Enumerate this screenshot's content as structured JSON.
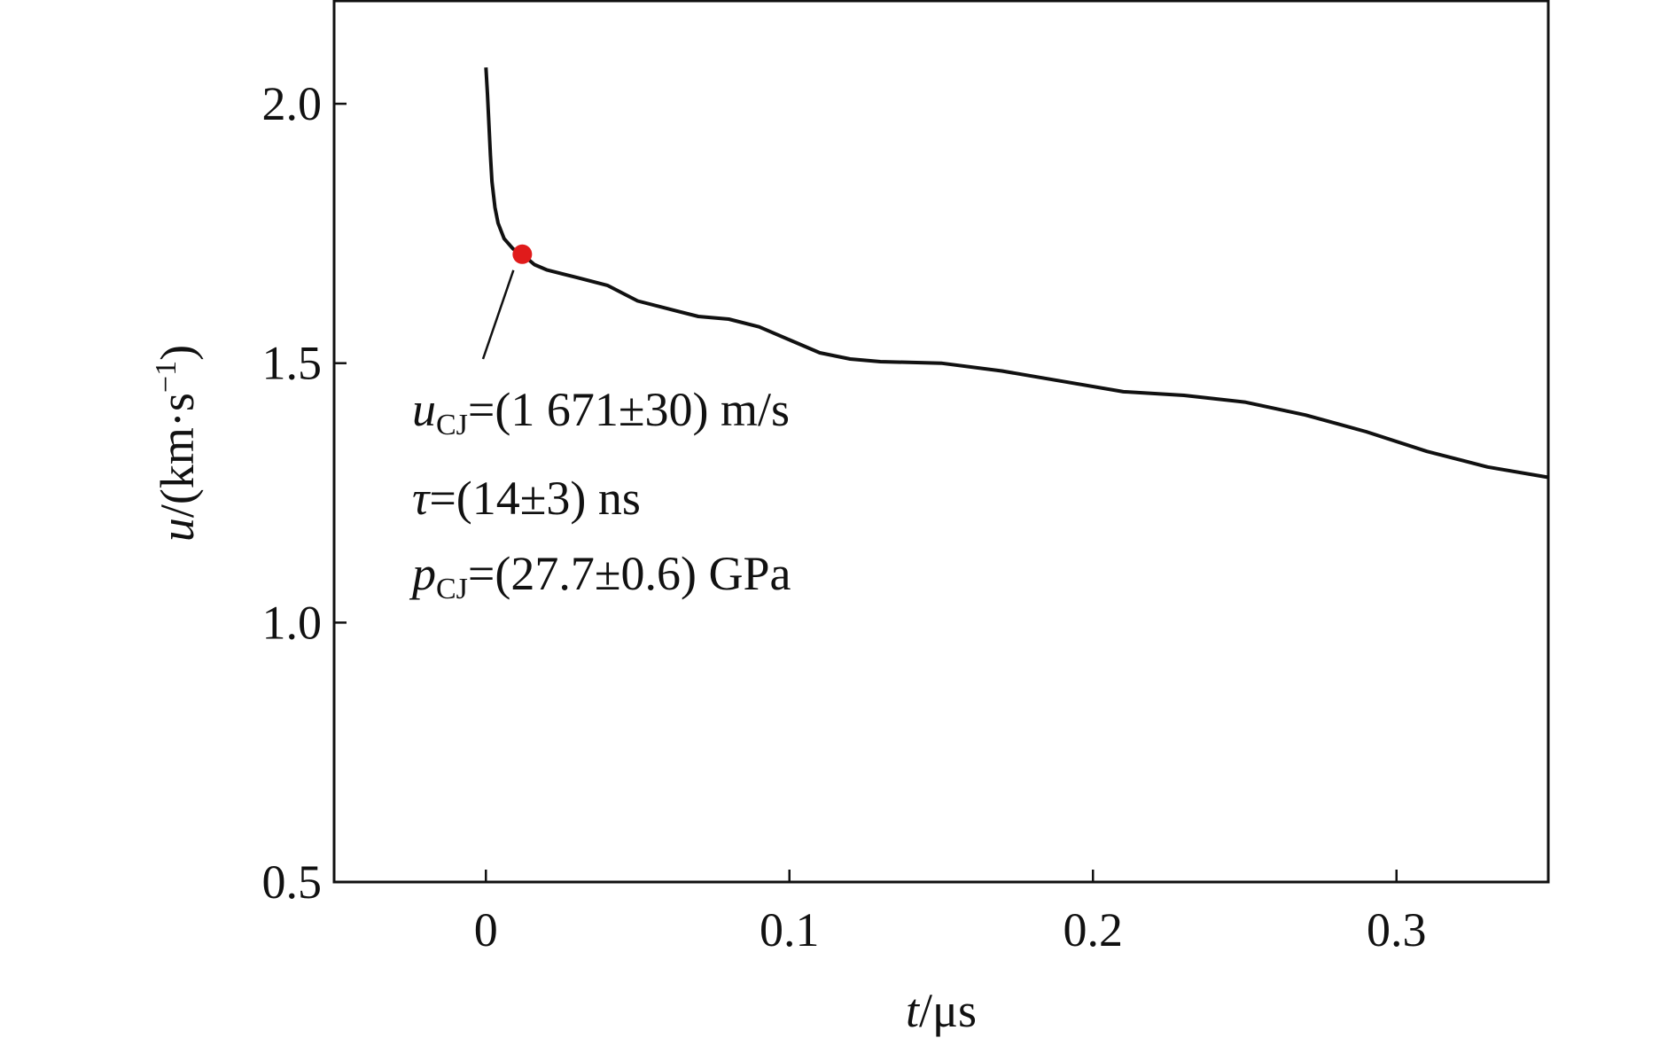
{
  "chart_data": {
    "type": "line",
    "xlabel": {
      "var": "t",
      "unit": "/μs"
    },
    "ylabel": {
      "var": "u",
      "unit_prefix": "/(km·s",
      "unit_sup": "−1",
      "unit_suffix": ")"
    },
    "xlim": [
      -0.05,
      0.35
    ],
    "ylim": [
      0.5,
      2.2
    ],
    "xticks": [
      0,
      0.1,
      0.2,
      0.3
    ],
    "xtick_labels": [
      "0",
      "0.1",
      "0.2",
      "0.3"
    ],
    "yticks": [
      0.5,
      1.0,
      1.5,
      2.0
    ],
    "ytick_labels": [
      "0.5",
      "1.0",
      "1.5",
      "2.0"
    ],
    "grid": false,
    "series": [
      {
        "color": "#111111",
        "points": [
          [
            0.0,
            2.07
          ],
          [
            0.0005,
            2.02
          ],
          [
            0.001,
            1.96
          ],
          [
            0.0015,
            1.9
          ],
          [
            0.002,
            1.85
          ],
          [
            0.003,
            1.8
          ],
          [
            0.004,
            1.77
          ],
          [
            0.006,
            1.74
          ],
          [
            0.009,
            1.72
          ],
          [
            0.012,
            1.71
          ],
          [
            0.016,
            1.69
          ],
          [
            0.02,
            1.68
          ],
          [
            0.03,
            1.665
          ],
          [
            0.04,
            1.65
          ],
          [
            0.05,
            1.62
          ],
          [
            0.06,
            1.605
          ],
          [
            0.07,
            1.59
          ],
          [
            0.08,
            1.585
          ],
          [
            0.09,
            1.57
          ],
          [
            0.1,
            1.545
          ],
          [
            0.11,
            1.52
          ],
          [
            0.12,
            1.508
          ],
          [
            0.13,
            1.503
          ],
          [
            0.15,
            1.5
          ],
          [
            0.17,
            1.485
          ],
          [
            0.19,
            1.465
          ],
          [
            0.21,
            1.445
          ],
          [
            0.23,
            1.438
          ],
          [
            0.25,
            1.425
          ],
          [
            0.27,
            1.4
          ],
          [
            0.29,
            1.368
          ],
          [
            0.31,
            1.33
          ],
          [
            0.33,
            1.3
          ],
          [
            0.35,
            1.28
          ]
        ]
      }
    ],
    "highlight_point": {
      "x": 0.012,
      "y": 1.71,
      "color": "#e01b1b"
    },
    "annotations": [
      {
        "var": "u",
        "sub": "CJ",
        "text": "=(1 671±30) m/s"
      },
      {
        "var": "τ",
        "sub": "",
        "text": "=(14±3) ns"
      },
      {
        "var": "p",
        "sub": "CJ",
        "text": "=(27.7±0.6) GPa"
      }
    ]
  }
}
